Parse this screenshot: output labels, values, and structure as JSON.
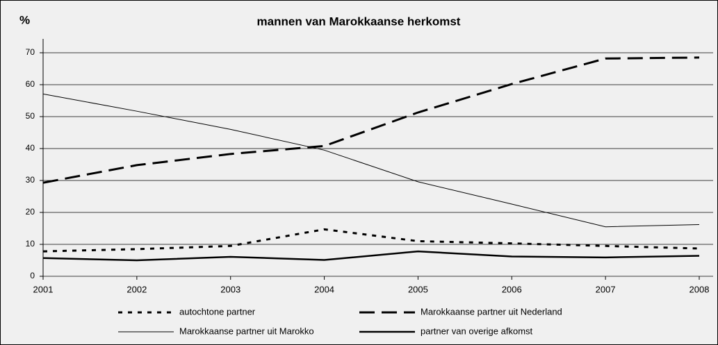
{
  "chart_data": {
    "type": "line",
    "title": "mannen van Marokkaanse herkomst",
    "y_label": "%",
    "categories": [
      "2001",
      "2002",
      "2003",
      "2004",
      "2005",
      "2006",
      "2007",
      "2008"
    ],
    "ylim": [
      0,
      70
    ],
    "yticks": [
      0,
      10,
      20,
      30,
      40,
      50,
      60,
      70
    ],
    "grid": true,
    "legend": "bottom",
    "series": [
      {
        "name": "autochtone partner",
        "color": "#000000",
        "dash": "6 8",
        "width": 3,
        "values": [
          7.8,
          8.5,
          9.5,
          14.7,
          11,
          10.3,
          9.5,
          8.7
        ]
      },
      {
        "name": "Marokkaanse partner uit Nederland",
        "color": "#000000",
        "dash": "22 10",
        "width": 3,
        "values": [
          29.3,
          34.8,
          38.3,
          40.8,
          51.3,
          60.2,
          68.2,
          68.5
        ]
      },
      {
        "name": "Marokkaanse partner uit Marokko",
        "color": "#000000",
        "dash": "none",
        "width": 1,
        "values": [
          57.1,
          51.7,
          46,
          39.5,
          29.6,
          22.6,
          15.5,
          16.2
        ]
      },
      {
        "name": "partner van overige afkomst",
        "color": "#000000",
        "dash": "none",
        "width": 2.5,
        "values": [
          5.7,
          5,
          6.1,
          5.1,
          7.8,
          6.2,
          5.9,
          6.4
        ]
      }
    ]
  }
}
